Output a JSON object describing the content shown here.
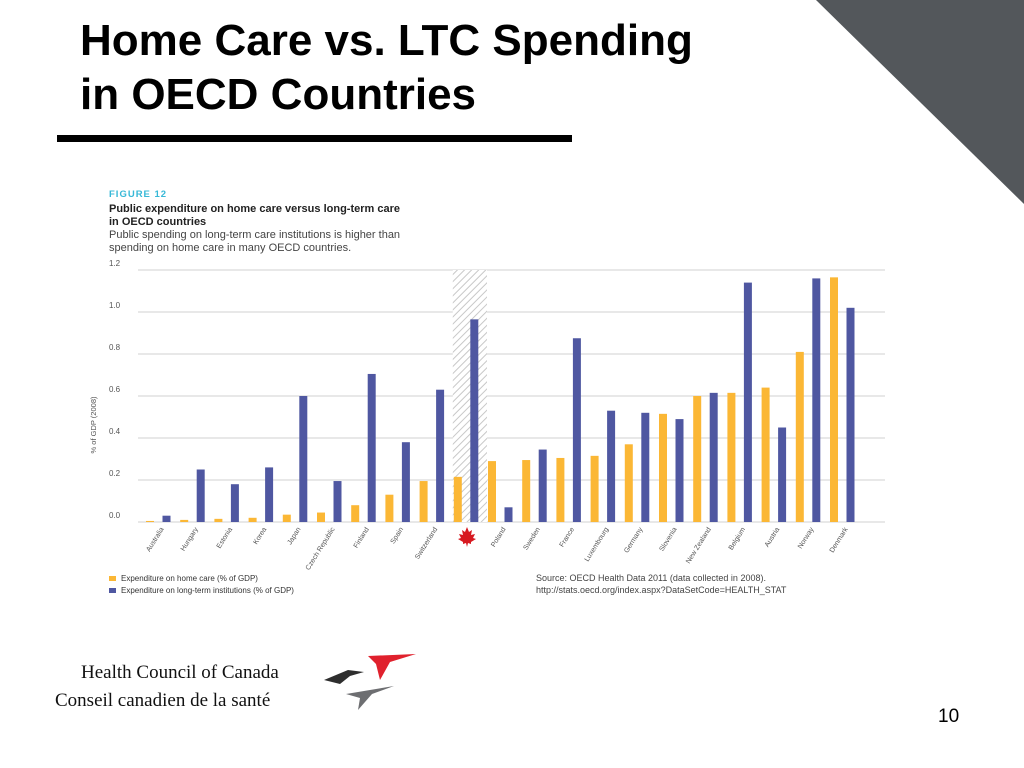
{
  "slide": {
    "title_line1": "Home Care vs. LTC Spending",
    "title_line2": "in OECD Countries",
    "number": "10"
  },
  "figure": {
    "label": "FIGURE 12",
    "title_line1": "Public expenditure on home care versus long-term care",
    "title_line2": "in OECD countries",
    "subtitle_line1": "Public spending on long-term care institutions is higher than",
    "subtitle_line2": "spending on home care in many OECD countries.",
    "source_line1": "Source: OECD Health Data 2011 (data collected in 2008).",
    "source_line2": "http://stats.oecd.org/index.aspx?DataSetCode=HEALTH_STAT"
  },
  "organization": {
    "name_en": "Health Council of Canada",
    "name_fr": "Conseil canadien de la santé"
  },
  "colors": {
    "home_care": "#fbb735",
    "institutions": "#4f57a1",
    "gridline": "#d2d2d2",
    "figure_label": "#37b8d7",
    "corner_triangle": "#53575b",
    "logo_red": "#e0212d",
    "logo_dark": "#2e2e2e",
    "logo_grey": "#6d6e71"
  },
  "icons": {
    "canada_marker": "maple-leaf-icon",
    "logo": "birds-logo"
  },
  "chart_data": {
    "type": "bar",
    "ylabel": "% of GDP (2008)",
    "ylim": [
      0,
      1.2
    ],
    "yticks": [
      "0.0",
      "0.2",
      "0.4",
      "0.6",
      "0.8",
      "1.0",
      "1.2"
    ],
    "ytick_values": [
      0,
      0.2,
      0.4,
      0.6,
      0.8,
      1.0,
      1.2
    ],
    "grid": true,
    "categories": [
      "Australia",
      "Hungary",
      "Estonia",
      "Korea",
      "Japan",
      "Czech Republic",
      "Finland",
      "Spain",
      "Switzerland",
      "Canada",
      "Poland",
      "Sweden",
      "France",
      "Luxembourg",
      "Germany",
      "Slovenia",
      "New Zealand",
      "Belgium",
      "Austria",
      "Norway",
      "Denmark"
    ],
    "category_labels": [
      "Australia",
      "Hungary",
      "Estonia",
      "Korea",
      "Japan",
      "Czech Republic",
      "Finland",
      "Spain",
      "Switzerland",
      "",
      "Poland",
      "Sweden",
      "France",
      "Luxembourg",
      "Germany",
      "Slovenia",
      "New Zealand",
      "Belgium",
      "Austria",
      "Norway",
      "Denmark"
    ],
    "highlight_category": "Canada",
    "series": [
      {
        "name": "Expenditure on home care (% of GDP)",
        "values": [
          0.005,
          0.01,
          0.015,
          0.02,
          0.035,
          0.045,
          0.08,
          0.13,
          0.195,
          0.215,
          0.29,
          0.295,
          0.305,
          0.315,
          0.37,
          0.515,
          0.6,
          0.615,
          0.64,
          0.81,
          1.165
        ]
      },
      {
        "name": "Expenditure on long-term institutions (% of GDP)",
        "values": [
          0.03,
          0.25,
          0.18,
          0.26,
          0.6,
          0.195,
          0.705,
          0.38,
          0.63,
          0.965,
          0.07,
          0.345,
          0.875,
          0.53,
          0.52,
          0.49,
          0.615,
          1.14,
          0.45,
          1.16,
          1.02
        ]
      }
    ],
    "legend_position": "bottom-left"
  }
}
